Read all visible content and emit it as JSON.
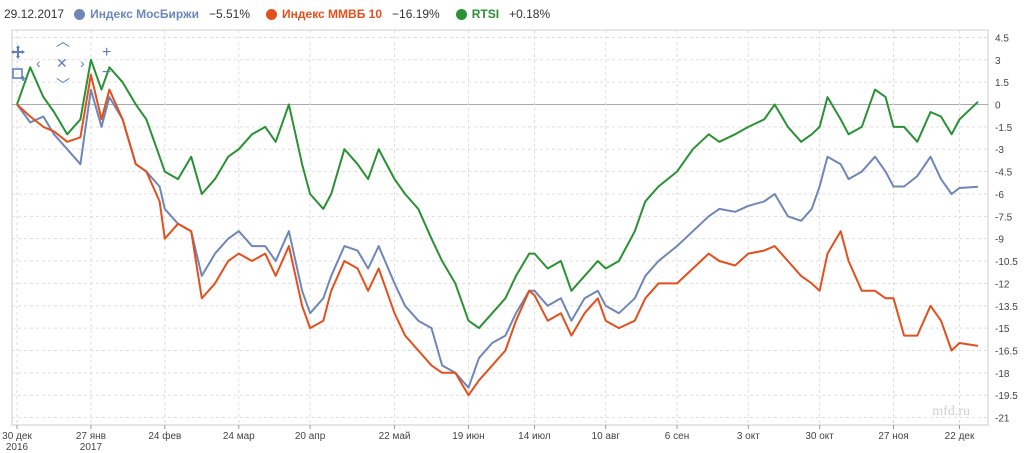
{
  "header": {
    "date": "29.12.2017"
  },
  "legend": [
    {
      "name": "Индекс МосБиржи",
      "change": "−5.51%",
      "color": "#6f86b8"
    },
    {
      "name": "Индекс ММВБ 10",
      "change": "−16.19%",
      "color": "#e2501d"
    },
    {
      "name": "RTSI",
      "change": "+0.18%",
      "color": "#2a9134"
    }
  ],
  "watermark": "mfd.ru",
  "controls": {
    "pan_icon": "move-icon",
    "select_icon": "zoom-select-icon",
    "zoom_in": "+",
    "zoom_out": "−"
  },
  "chart_data": {
    "type": "line",
    "ylim": [
      -21.5,
      5
    ],
    "grid": true,
    "y_ticks": [
      4.5,
      3,
      1.5,
      0,
      -1.5,
      -3,
      -4.5,
      -6,
      -7.5,
      -9,
      -10.5,
      -12,
      -13.5,
      -15,
      -16.5,
      -18,
      -19.5,
      -21
    ],
    "x_ticks": [
      {
        "label": "30 дек",
        "sub": "2016",
        "date": "2016-12-30"
      },
      {
        "label": "27 янв",
        "sub": "2017",
        "date": "2017-01-27"
      },
      {
        "label": "24 фев",
        "date": "2017-02-24"
      },
      {
        "label": "24 мар",
        "date": "2017-03-24"
      },
      {
        "label": "20 апр",
        "date": "2017-04-20"
      },
      {
        "label": "22 май",
        "date": "2017-05-22"
      },
      {
        "label": "19 июн",
        "date": "2017-06-19"
      },
      {
        "label": "14 июл",
        "date": "2017-07-14"
      },
      {
        "label": "10 авг",
        "date": "2017-08-10"
      },
      {
        "label": "6 сен",
        "date": "2017-09-06"
      },
      {
        "label": "3 окт",
        "date": "2017-10-03"
      },
      {
        "label": "30 окт",
        "date": "2017-10-30"
      },
      {
        "label": "27 ноя",
        "date": "2017-11-27"
      },
      {
        "label": "22 дек",
        "date": "2017-12-22"
      }
    ],
    "series": [
      {
        "name": "Индекс МосБиржи",
        "color": "#6f86b8",
        "points": [
          [
            "2016-12-30",
            0
          ],
          [
            "2017-01-04",
            -1.2
          ],
          [
            "2017-01-09",
            -0.8
          ],
          [
            "2017-01-13",
            -2.0
          ],
          [
            "2017-01-18",
            -3.0
          ],
          [
            "2017-01-23",
            -4.0
          ],
          [
            "2017-01-27",
            1.0
          ],
          [
            "2017-01-31",
            -1.5
          ],
          [
            "2017-02-03",
            0.5
          ],
          [
            "2017-02-08",
            -1.0
          ],
          [
            "2017-02-13",
            -4.0
          ],
          [
            "2017-02-17",
            -4.5
          ],
          [
            "2017-02-22",
            -5.5
          ],
          [
            "2017-02-24",
            -7.0
          ],
          [
            "2017-03-01",
            -8.0
          ],
          [
            "2017-03-06",
            -8.5
          ],
          [
            "2017-03-10",
            -11.5
          ],
          [
            "2017-03-15",
            -10.0
          ],
          [
            "2017-03-20",
            -9.0
          ],
          [
            "2017-03-24",
            -8.5
          ],
          [
            "2017-03-29",
            -9.5
          ],
          [
            "2017-04-03",
            -9.5
          ],
          [
            "2017-04-07",
            -10.5
          ],
          [
            "2017-04-12",
            -8.5
          ],
          [
            "2017-04-17",
            -12.5
          ],
          [
            "2017-04-20",
            -14.0
          ],
          [
            "2017-04-25",
            -13.0
          ],
          [
            "2017-04-28",
            -11.5
          ],
          [
            "2017-05-03",
            -9.5
          ],
          [
            "2017-05-08",
            -9.8
          ],
          [
            "2017-05-12",
            -11.0
          ],
          [
            "2017-05-16",
            -9.5
          ],
          [
            "2017-05-22",
            -12.0
          ],
          [
            "2017-05-26",
            -13.5
          ],
          [
            "2017-05-31",
            -14.5
          ],
          [
            "2017-06-05",
            -15.0
          ],
          [
            "2017-06-09",
            -17.5
          ],
          [
            "2017-06-14",
            -18.0
          ],
          [
            "2017-06-19",
            -19.0
          ],
          [
            "2017-06-23",
            -17.0
          ],
          [
            "2017-06-28",
            -16.0
          ],
          [
            "2017-07-03",
            -15.5
          ],
          [
            "2017-07-07",
            -14.0
          ],
          [
            "2017-07-12",
            -12.5
          ],
          [
            "2017-07-14",
            -12.5
          ],
          [
            "2017-07-19",
            -13.5
          ],
          [
            "2017-07-24",
            -13.0
          ],
          [
            "2017-07-28",
            -14.5
          ],
          [
            "2017-08-02",
            -13.0
          ],
          [
            "2017-08-07",
            -12.5
          ],
          [
            "2017-08-10",
            -13.5
          ],
          [
            "2017-08-15",
            -14.0
          ],
          [
            "2017-08-21",
            -13.0
          ],
          [
            "2017-08-25",
            -11.5
          ],
          [
            "2017-08-30",
            -10.5
          ],
          [
            "2017-09-06",
            -9.5
          ],
          [
            "2017-09-12",
            -8.5
          ],
          [
            "2017-09-18",
            -7.5
          ],
          [
            "2017-09-22",
            -7.0
          ],
          [
            "2017-09-28",
            -7.2
          ],
          [
            "2017-10-03",
            -6.8
          ],
          [
            "2017-10-09",
            -6.5
          ],
          [
            "2017-10-13",
            -6.0
          ],
          [
            "2017-10-18",
            -7.5
          ],
          [
            "2017-10-23",
            -7.8
          ],
          [
            "2017-10-27",
            -7.0
          ],
          [
            "2017-10-30",
            -5.5
          ],
          [
            "2017-11-02",
            -3.5
          ],
          [
            "2017-11-07",
            -4.0
          ],
          [
            "2017-11-10",
            -5.0
          ],
          [
            "2017-11-15",
            -4.5
          ],
          [
            "2017-11-20",
            -3.5
          ],
          [
            "2017-11-24",
            -4.5
          ],
          [
            "2017-11-27",
            -5.5
          ],
          [
            "2017-12-01",
            -5.5
          ],
          [
            "2017-12-06",
            -4.8
          ],
          [
            "2017-12-11",
            -3.5
          ],
          [
            "2017-12-15",
            -5.0
          ],
          [
            "2017-12-19",
            -6.0
          ],
          [
            "2017-12-22",
            -5.6
          ],
          [
            "2017-12-29",
            -5.51
          ]
        ]
      },
      {
        "name": "Индекс ММВБ 10",
        "color": "#e2501d",
        "points": [
          [
            "2016-12-30",
            0
          ],
          [
            "2017-01-04",
            -0.8
          ],
          [
            "2017-01-09",
            -1.5
          ],
          [
            "2017-01-13",
            -1.8
          ],
          [
            "2017-01-18",
            -2.5
          ],
          [
            "2017-01-23",
            -2.2
          ],
          [
            "2017-01-27",
            2.0
          ],
          [
            "2017-01-31",
            -1.0
          ],
          [
            "2017-02-03",
            1.0
          ],
          [
            "2017-02-08",
            -1.0
          ],
          [
            "2017-02-13",
            -4.0
          ],
          [
            "2017-02-17",
            -4.5
          ],
          [
            "2017-02-22",
            -6.5
          ],
          [
            "2017-02-24",
            -9.0
          ],
          [
            "2017-03-01",
            -8.0
          ],
          [
            "2017-03-06",
            -8.5
          ],
          [
            "2017-03-10",
            -13.0
          ],
          [
            "2017-03-15",
            -12.0
          ],
          [
            "2017-03-20",
            -10.5
          ],
          [
            "2017-03-24",
            -10.0
          ],
          [
            "2017-03-29",
            -10.5
          ],
          [
            "2017-04-03",
            -10.0
          ],
          [
            "2017-04-07",
            -11.5
          ],
          [
            "2017-04-12",
            -9.5
          ],
          [
            "2017-04-17",
            -13.5
          ],
          [
            "2017-04-20",
            -15.0
          ],
          [
            "2017-04-25",
            -14.5
          ],
          [
            "2017-04-28",
            -12.5
          ],
          [
            "2017-05-03",
            -10.5
          ],
          [
            "2017-05-08",
            -11.0
          ],
          [
            "2017-05-12",
            -12.5
          ],
          [
            "2017-05-16",
            -11.0
          ],
          [
            "2017-05-22",
            -14.0
          ],
          [
            "2017-05-26",
            -15.5
          ],
          [
            "2017-05-31",
            -16.5
          ],
          [
            "2017-06-05",
            -17.5
          ],
          [
            "2017-06-09",
            -18.0
          ],
          [
            "2017-06-14",
            -18.0
          ],
          [
            "2017-06-19",
            -19.5
          ],
          [
            "2017-06-23",
            -18.5
          ],
          [
            "2017-06-28",
            -17.5
          ],
          [
            "2017-07-03",
            -16.5
          ],
          [
            "2017-07-07",
            -14.5
          ],
          [
            "2017-07-12",
            -12.5
          ],
          [
            "2017-07-14",
            -12.8
          ],
          [
            "2017-07-19",
            -14.5
          ],
          [
            "2017-07-24",
            -14.0
          ],
          [
            "2017-07-28",
            -15.5
          ],
          [
            "2017-08-02",
            -14.0
          ],
          [
            "2017-08-07",
            -13.0
          ],
          [
            "2017-08-10",
            -14.5
          ],
          [
            "2017-08-15",
            -15.0
          ],
          [
            "2017-08-21",
            -14.5
          ],
          [
            "2017-08-25",
            -13.0
          ],
          [
            "2017-08-30",
            -12.0
          ],
          [
            "2017-09-06",
            -12.0
          ],
          [
            "2017-09-12",
            -11.0
          ],
          [
            "2017-09-18",
            -10.0
          ],
          [
            "2017-09-22",
            -10.5
          ],
          [
            "2017-09-28",
            -10.8
          ],
          [
            "2017-10-03",
            -10.0
          ],
          [
            "2017-10-09",
            -9.8
          ],
          [
            "2017-10-13",
            -9.5
          ],
          [
            "2017-10-18",
            -10.5
          ],
          [
            "2017-10-23",
            -11.5
          ],
          [
            "2017-10-27",
            -12.0
          ],
          [
            "2017-10-30",
            -12.5
          ],
          [
            "2017-11-02",
            -10.0
          ],
          [
            "2017-11-07",
            -8.5
          ],
          [
            "2017-11-10",
            -10.5
          ],
          [
            "2017-11-15",
            -12.5
          ],
          [
            "2017-11-20",
            -12.5
          ],
          [
            "2017-11-24",
            -13.0
          ],
          [
            "2017-11-27",
            -13.0
          ],
          [
            "2017-12-01",
            -15.5
          ],
          [
            "2017-12-06",
            -15.5
          ],
          [
            "2017-12-11",
            -13.5
          ],
          [
            "2017-12-15",
            -14.5
          ],
          [
            "2017-12-19",
            -16.5
          ],
          [
            "2017-12-22",
            -16.0
          ],
          [
            "2017-12-29",
            -16.19
          ]
        ]
      },
      {
        "name": "RTSI",
        "color": "#2a9134",
        "points": [
          [
            "2016-12-30",
            0
          ],
          [
            "2017-01-04",
            2.5
          ],
          [
            "2017-01-09",
            0.5
          ],
          [
            "2017-01-13",
            -0.5
          ],
          [
            "2017-01-18",
            -2.0
          ],
          [
            "2017-01-23",
            -1.0
          ],
          [
            "2017-01-27",
            3.0
          ],
          [
            "2017-01-31",
            1.0
          ],
          [
            "2017-02-03",
            2.5
          ],
          [
            "2017-02-08",
            1.5
          ],
          [
            "2017-02-13",
            0.0
          ],
          [
            "2017-02-17",
            -1.0
          ],
          [
            "2017-02-22",
            -3.5
          ],
          [
            "2017-02-24",
            -4.5
          ],
          [
            "2017-03-01",
            -5.0
          ],
          [
            "2017-03-06",
            -3.5
          ],
          [
            "2017-03-10",
            -6.0
          ],
          [
            "2017-03-15",
            -5.0
          ],
          [
            "2017-03-20",
            -3.5
          ],
          [
            "2017-03-24",
            -3.0
          ],
          [
            "2017-03-29",
            -2.0
          ],
          [
            "2017-04-03",
            -1.5
          ],
          [
            "2017-04-07",
            -2.5
          ],
          [
            "2017-04-12",
            0.0
          ],
          [
            "2017-04-17",
            -4.0
          ],
          [
            "2017-04-20",
            -6.0
          ],
          [
            "2017-04-25",
            -7.0
          ],
          [
            "2017-04-28",
            -6.0
          ],
          [
            "2017-05-03",
            -3.0
          ],
          [
            "2017-05-08",
            -4.0
          ],
          [
            "2017-05-12",
            -5.0
          ],
          [
            "2017-05-16",
            -3.0
          ],
          [
            "2017-05-22",
            -5.0
          ],
          [
            "2017-05-26",
            -6.0
          ],
          [
            "2017-05-31",
            -7.0
          ],
          [
            "2017-06-05",
            -9.0
          ],
          [
            "2017-06-09",
            -10.5
          ],
          [
            "2017-06-14",
            -12.0
          ],
          [
            "2017-06-19",
            -14.5
          ],
          [
            "2017-06-23",
            -15.0
          ],
          [
            "2017-06-28",
            -14.0
          ],
          [
            "2017-07-03",
            -13.0
          ],
          [
            "2017-07-07",
            -11.5
          ],
          [
            "2017-07-12",
            -10.0
          ],
          [
            "2017-07-14",
            -10.0
          ],
          [
            "2017-07-19",
            -11.0
          ],
          [
            "2017-07-24",
            -10.5
          ],
          [
            "2017-07-28",
            -12.5
          ],
          [
            "2017-08-02",
            -11.5
          ],
          [
            "2017-08-07",
            -10.5
          ],
          [
            "2017-08-10",
            -11.0
          ],
          [
            "2017-08-15",
            -10.5
          ],
          [
            "2017-08-21",
            -8.5
          ],
          [
            "2017-08-25",
            -6.5
          ],
          [
            "2017-08-30",
            -5.5
          ],
          [
            "2017-09-06",
            -4.5
          ],
          [
            "2017-09-12",
            -3.0
          ],
          [
            "2017-09-18",
            -2.0
          ],
          [
            "2017-09-22",
            -2.5
          ],
          [
            "2017-09-28",
            -2.0
          ],
          [
            "2017-10-03",
            -1.5
          ],
          [
            "2017-10-09",
            -1.0
          ],
          [
            "2017-10-13",
            0.0
          ],
          [
            "2017-10-18",
            -1.5
          ],
          [
            "2017-10-23",
            -2.5
          ],
          [
            "2017-10-27",
            -2.0
          ],
          [
            "2017-10-30",
            -1.5
          ],
          [
            "2017-11-02",
            0.5
          ],
          [
            "2017-11-07",
            -1.0
          ],
          [
            "2017-11-10",
            -2.0
          ],
          [
            "2017-11-15",
            -1.5
          ],
          [
            "2017-11-20",
            1.0
          ],
          [
            "2017-11-24",
            0.5
          ],
          [
            "2017-11-27",
            -1.5
          ],
          [
            "2017-12-01",
            -1.5
          ],
          [
            "2017-12-06",
            -2.5
          ],
          [
            "2017-12-11",
            -0.5
          ],
          [
            "2017-12-15",
            -0.8
          ],
          [
            "2017-12-19",
            -2.0
          ],
          [
            "2017-12-22",
            -1.0
          ],
          [
            "2017-12-29",
            0.18
          ]
        ]
      }
    ]
  }
}
